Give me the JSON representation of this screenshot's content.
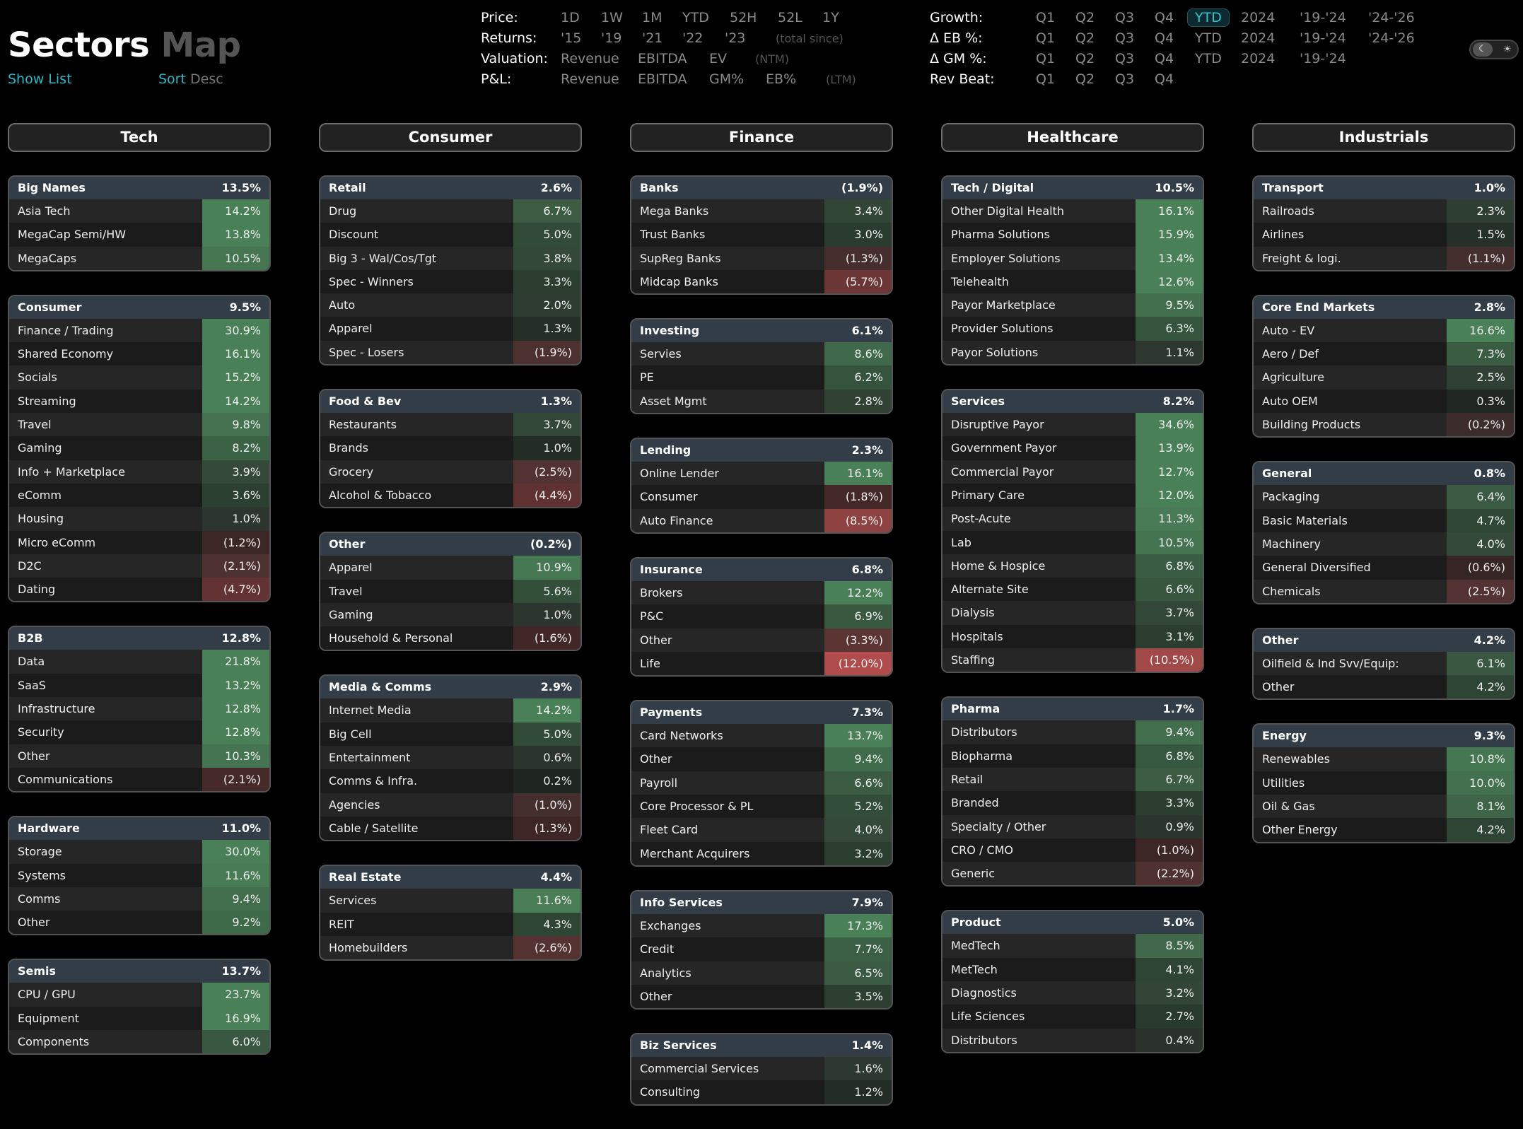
{
  "header": {
    "title_a": "Sectors",
    "title_b": "Map",
    "show_list": "Show List",
    "sort": "Sort",
    "sort_dir": "Desc"
  },
  "controls": {
    "price": {
      "label": "Price:",
      "options": [
        "1D",
        "1W",
        "1M",
        "YTD",
        "52H",
        "52L",
        "1Y"
      ]
    },
    "returns": {
      "label": "Returns:",
      "options": [
        "'15",
        "'19",
        "'21",
        "'22",
        "'23"
      ],
      "note": "(total since)"
    },
    "valuation": {
      "label": "Valuation:",
      "options": [
        "Revenue",
        "EBITDA",
        "EV"
      ],
      "note": "(NTM)"
    },
    "pl": {
      "label": "P&L:",
      "options": [
        "Revenue",
        "EBITDA",
        "GM%",
        "EB%"
      ],
      "note": "(LTM)"
    },
    "growth": {
      "label": "Growth:",
      "options": [
        "Q1",
        "Q2",
        "Q3",
        "Q4",
        "YTD",
        "2024",
        "'19-'24",
        "'24-'26"
      ],
      "selected": "YTD"
    },
    "eb": {
      "label": "Δ EB %:",
      "options": [
        "Q1",
        "Q2",
        "Q3",
        "Q4",
        "YTD",
        "2024",
        "'19-'24",
        "'24-'26"
      ]
    },
    "gm": {
      "label": "Δ GM %:",
      "options": [
        "Q1",
        "Q2",
        "Q3",
        "Q4",
        "YTD",
        "2024",
        "'19-'24"
      ]
    },
    "beat": {
      "label": "Rev Beat:",
      "options": [
        "Q1",
        "Q2",
        "Q3",
        "Q4"
      ]
    }
  },
  "colors": {
    "accent": "#2bb8c8",
    "positive": "#4a8058",
    "negative": "#b04c4c"
  },
  "sectors": [
    {
      "name": "Tech",
      "groups": [
        {
          "name": "Big Names",
          "value": "13.5%",
          "rows": [
            [
              "Asia Tech",
              "14.2%"
            ],
            [
              "MegaCap Semi/HW",
              "13.8%"
            ],
            [
              "MegaCaps",
              "10.5%"
            ]
          ]
        },
        {
          "name": "Consumer",
          "value": "9.5%",
          "rows": [
            [
              "Finance / Trading",
              "30.9%"
            ],
            [
              "Shared Economy",
              "16.1%"
            ],
            [
              "Socials",
              "15.2%"
            ],
            [
              "Streaming",
              "14.2%"
            ],
            [
              "Travel",
              "9.8%"
            ],
            [
              "Gaming",
              "8.2%"
            ],
            [
              "Info + Marketplace",
              "3.9%"
            ],
            [
              "eComm",
              "3.6%"
            ],
            [
              "Housing",
              "1.0%"
            ],
            [
              "Micro eComm",
              "(1.2%)"
            ],
            [
              "D2C",
              "(2.1%)"
            ],
            [
              "Dating",
              "(4.7%)"
            ]
          ]
        },
        {
          "name": "B2B",
          "value": "12.8%",
          "rows": [
            [
              "Data",
              "21.8%"
            ],
            [
              "SaaS",
              "13.2%"
            ],
            [
              "Infrastructure",
              "12.8%"
            ],
            [
              "Security",
              "12.8%"
            ],
            [
              "Other",
              "10.3%"
            ],
            [
              "Communications",
              "(2.1%)"
            ]
          ]
        },
        {
          "name": "Hardware",
          "value": "11.0%",
          "rows": [
            [
              "Storage",
              "30.0%"
            ],
            [
              "Systems",
              "11.6%"
            ],
            [
              "Comms",
              "9.4%"
            ],
            [
              "Other",
              "9.2%"
            ]
          ]
        },
        {
          "name": "Semis",
          "value": "13.7%",
          "rows": [
            [
              "CPU / GPU",
              "23.7%"
            ],
            [
              "Equipment",
              "16.9%"
            ],
            [
              "Components",
              "6.0%"
            ]
          ]
        }
      ]
    },
    {
      "name": "Consumer",
      "groups": [
        {
          "name": "Retail",
          "value": "2.6%",
          "rows": [
            [
              "Drug",
              "6.7%"
            ],
            [
              "Discount",
              "5.0%"
            ],
            [
              "Big 3 - Wal/Cos/Tgt",
              "3.8%"
            ],
            [
              "Spec - Winners",
              "3.3%"
            ],
            [
              "Auto",
              "2.0%"
            ],
            [
              "Apparel",
              "1.3%"
            ],
            [
              "Spec - Losers",
              "(1.9%)"
            ]
          ]
        },
        {
          "name": "Food & Bev",
          "value": "1.3%",
          "rows": [
            [
              "Restaurants",
              "3.7%"
            ],
            [
              "Brands",
              "1.0%"
            ],
            [
              "Grocery",
              "(2.5%)"
            ],
            [
              "Alcohol & Tobacco",
              "(4.4%)"
            ]
          ]
        },
        {
          "name": "Other",
          "value": "(0.2%)",
          "rows": [
            [
              "Apparel",
              "10.9%"
            ],
            [
              "Travel",
              "5.6%"
            ],
            [
              "Gaming",
              "1.0%"
            ],
            [
              "Household & Personal",
              "(1.6%)"
            ]
          ]
        },
        {
          "name": "Media & Comms",
          "value": "2.9%",
          "rows": [
            [
              "Internet Media",
              "14.2%"
            ],
            [
              "Big Cell",
              "5.0%"
            ],
            [
              "Entertainment",
              "0.6%"
            ],
            [
              "Comms & Infra.",
              "0.2%"
            ],
            [
              "Agencies",
              "(1.0%)"
            ],
            [
              "Cable / Satellite",
              "(1.3%)"
            ]
          ]
        },
        {
          "name": "Real Estate",
          "value": "4.4%",
          "rows": [
            [
              "Services",
              "11.6%"
            ],
            [
              "REIT",
              "4.3%"
            ],
            [
              "Homebuilders",
              "(2.6%)"
            ]
          ]
        }
      ]
    },
    {
      "name": "Finance",
      "groups": [
        {
          "name": "Banks",
          "value": "(1.9%)",
          "rows": [
            [
              "Mega Banks",
              "3.4%"
            ],
            [
              "Trust Banks",
              "3.0%"
            ],
            [
              "SupReg Banks",
              "(1.3%)"
            ],
            [
              "Midcap Banks",
              "(5.7%)"
            ]
          ]
        },
        {
          "name": "Investing",
          "value": "6.1%",
          "rows": [
            [
              "Servies",
              "8.6%"
            ],
            [
              "PE",
              "6.2%"
            ],
            [
              "Asset Mgmt",
              "2.8%"
            ]
          ]
        },
        {
          "name": "Lending",
          "value": "2.3%",
          "rows": [
            [
              "Online Lender",
              "16.1%"
            ],
            [
              "Consumer",
              "(1.8%)"
            ],
            [
              "Auto Finance",
              "(8.5%)"
            ]
          ]
        },
        {
          "name": "Insurance",
          "value": "6.8%",
          "rows": [
            [
              "Brokers",
              "12.2%"
            ],
            [
              "P&C",
              "6.9%"
            ],
            [
              "Other",
              "(3.3%)"
            ],
            [
              "Life",
              "(12.0%)"
            ]
          ]
        },
        {
          "name": "Payments",
          "value": "7.3%",
          "rows": [
            [
              "Card Networks",
              "13.7%"
            ],
            [
              "Other",
              "9.4%"
            ],
            [
              "Payroll",
              "6.6%"
            ],
            [
              "Core Processor & PL",
              "5.2%"
            ],
            [
              "Fleet Card",
              "4.0%"
            ],
            [
              "Merchant Acquirers",
              "3.2%"
            ]
          ]
        },
        {
          "name": "Info Services",
          "value": "7.9%",
          "rows": [
            [
              "Exchanges",
              "17.3%"
            ],
            [
              "Credit",
              "7.7%"
            ],
            [
              "Analytics",
              "6.5%"
            ],
            [
              "Other",
              "3.5%"
            ]
          ]
        },
        {
          "name": "Biz Services",
          "value": "1.4%",
          "rows": [
            [
              "Commercial Services",
              "1.6%"
            ],
            [
              "Consulting",
              "1.2%"
            ]
          ]
        }
      ]
    },
    {
      "name": "Healthcare",
      "groups": [
        {
          "name": "Tech / Digital",
          "value": "10.5%",
          "rows": [
            [
              "Other Digital Health",
              "16.1%"
            ],
            [
              "Pharma Solutions",
              "15.9%"
            ],
            [
              "Employer Solutions",
              "13.4%"
            ],
            [
              "Telehealth",
              "12.6%"
            ],
            [
              "Payor Marketplace",
              "9.5%"
            ],
            [
              "Provider Solutions",
              "6.3%"
            ],
            [
              "Payor Solutions",
              "1.1%"
            ]
          ]
        },
        {
          "name": "Services",
          "value": "8.2%",
          "rows": [
            [
              "Disruptive Payor",
              "34.6%"
            ],
            [
              "Government Payor",
              "13.9%"
            ],
            [
              "Commercial Payor",
              "12.7%"
            ],
            [
              "Primary Care",
              "12.0%"
            ],
            [
              "Post-Acute",
              "11.3%"
            ],
            [
              "Lab",
              "10.5%"
            ],
            [
              "Home & Hospice",
              "6.8%"
            ],
            [
              "Alternate Site",
              "6.6%"
            ],
            [
              "Dialysis",
              "3.7%"
            ],
            [
              "Hospitals",
              "3.1%"
            ],
            [
              "Staffing",
              "(10.5%)"
            ]
          ]
        },
        {
          "name": "Pharma",
          "value": "1.7%",
          "rows": [
            [
              "Distributors",
              "9.4%"
            ],
            [
              "Biopharma",
              "6.8%"
            ],
            [
              "Retail",
              "6.7%"
            ],
            [
              "Branded",
              "3.3%"
            ],
            [
              "Specialty / Other",
              "0.9%"
            ],
            [
              "CRO / CMO",
              "(1.0%)"
            ],
            [
              "Generic",
              "(2.2%)"
            ]
          ]
        },
        {
          "name": "Product",
          "value": "5.0%",
          "rows": [
            [
              "MedTech",
              "8.5%"
            ],
            [
              "MetTech",
              "4.1%"
            ],
            [
              "Diagnostics",
              "3.2%"
            ],
            [
              "Life Sciences",
              "2.7%"
            ],
            [
              "Distributors",
              "0.4%"
            ]
          ]
        }
      ]
    },
    {
      "name": "Industrials",
      "groups": [
        {
          "name": "Transport",
          "value": "1.0%",
          "rows": [
            [
              "Railroads",
              "2.3%"
            ],
            [
              "Airlines",
              "1.5%"
            ],
            [
              "Freight & logi.",
              "(1.1%)"
            ]
          ]
        },
        {
          "name": "Core End Markets",
          "value": "2.8%",
          "rows": [
            [
              "Auto - EV",
              "16.6%"
            ],
            [
              "Aero / Def",
              "7.3%"
            ],
            [
              "Agriculture",
              "2.5%"
            ],
            [
              "Auto OEM",
              "0.3%"
            ],
            [
              "Building Products",
              "(0.2%)"
            ]
          ]
        },
        {
          "name": "General",
          "value": "0.8%",
          "rows": [
            [
              "Packaging",
              "6.4%"
            ],
            [
              "Basic Materials",
              "4.7%"
            ],
            [
              "Machinery",
              "4.0%"
            ],
            [
              "General Diversified",
              "(0.6%)"
            ],
            [
              "Chemicals",
              "(2.5%)"
            ]
          ]
        },
        {
          "name": "Other",
          "value": "4.2%",
          "rows": [
            [
              "Oilfield & Ind Svv/Equip:",
              "6.1%"
            ],
            [
              "Other",
              "4.2%"
            ]
          ]
        },
        {
          "name": "Energy",
          "value": "9.3%",
          "rows": [
            [
              "Renewables",
              "10.8%"
            ],
            [
              "Utilities",
              "10.0%"
            ],
            [
              "Oil & Gas",
              "8.1%"
            ],
            [
              "Other Energy",
              "4.2%"
            ]
          ]
        }
      ]
    }
  ]
}
